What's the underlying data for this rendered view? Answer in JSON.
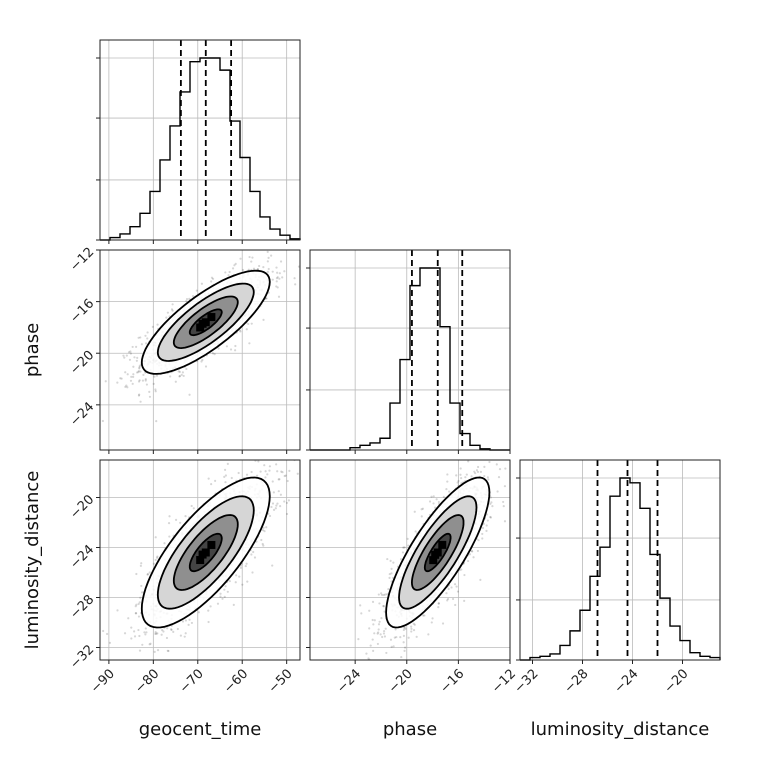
{
  "chart_data": {
    "type": "corner",
    "parameters": [
      "geocent_time",
      "phase",
      "luminosity_distance"
    ],
    "ranges": {
      "geocent_time": [
        -92,
        -47
      ],
      "phase": [
        -27.5,
        -12
      ],
      "luminosity_distance": [
        -33,
        -17
      ]
    },
    "ticks": {
      "geocent_time": [
        -90,
        -80,
        -70,
        -60,
        -50
      ],
      "phase": [
        -24,
        -20,
        -16,
        -12
      ],
      "luminosity_distance": [
        -32,
        -28,
        -24,
        -20
      ]
    },
    "tick_labels": {
      "geocent_time": [
        "−90",
        "−80",
        "−70",
        "−60",
        "−50"
      ],
      "phase": [
        "−24",
        "−20",
        "−16",
        "−12"
      ],
      "luminosity_distance": [
        "−32",
        "−28",
        "−24",
        "−20"
      ]
    },
    "diag_tick_fractions": [
      0,
      0.33,
      0.67,
      1.0
    ],
    "quantiles": {
      "geocent_time": [
        -73.8,
        -68.2,
        -62.5
      ],
      "phase": [
        -19.6,
        -17.6,
        -15.7
      ],
      "luminosity_distance": [
        -26.8,
        -24.4,
        -22.0
      ]
    },
    "histograms": {
      "geocent_time": {
        "start": -92,
        "bin_width": 2.25,
        "counts": [
          0,
          2,
          5,
          11,
          22,
          40,
          66,
          94,
          122,
          147,
          150,
          150,
          140,
          98,
          68,
          40,
          19,
          9,
          4,
          1
        ]
      },
      "phase": {
        "start": -27.5,
        "bin_width": 0.775,
        "counts": [
          0,
          0,
          0,
          0,
          2,
          4,
          6,
          10,
          40,
          77,
          140,
          155,
          155,
          105,
          40,
          14,
          4,
          1,
          0,
          0
        ]
      },
      "luminosity_distance": {
        "start": -33,
        "bin_width": 0.8,
        "counts": [
          0,
          2,
          3,
          5,
          12,
          24,
          41,
          69,
          93,
          135,
          150,
          146,
          125,
          87,
          51,
          28,
          16,
          6,
          3,
          2
        ]
      }
    },
    "pairs": [
      {
        "x": "geocent_time",
        "y": "phase",
        "mean": [
          -68.2,
          -17.6
        ],
        "sd": [
          7.2,
          2.0
        ],
        "rho": 0.78
      },
      {
        "x": "geocent_time",
        "y": "luminosity_distance",
        "mean": [
          -68.2,
          -24.4
        ],
        "sd": [
          7.2,
          3.0
        ],
        "rho": 0.75
      },
      {
        "x": "phase",
        "y": "luminosity_distance",
        "mean": [
          -17.6,
          -24.4
        ],
        "sd": [
          2.0,
          3.0
        ],
        "rho": 0.8
      }
    ],
    "contour_levels_sigma": [
      0.5,
      1.0,
      1.5,
      2.0
    ],
    "scatter_points_per_panel": 1400
  }
}
